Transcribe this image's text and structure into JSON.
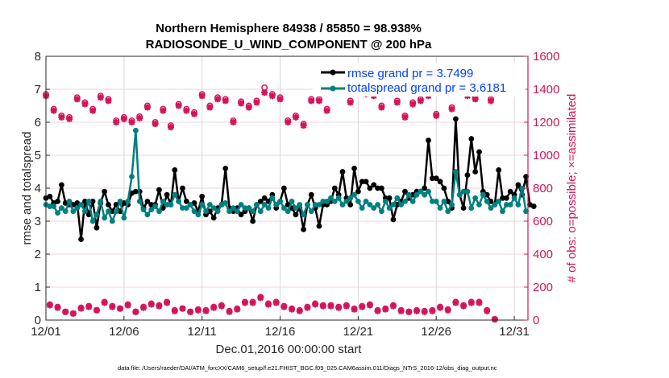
{
  "chart_data": {
    "type": "line",
    "title": "Northern Hemisphere 84938 / 85850 = 98.938%",
    "subtitle": "RADIOSONDE_U_WIND_COMPONENT @ 200 hPa",
    "xlabel": "Dec.01,2016 00:00:00 start",
    "ylabel": "rmse and totalspread",
    "ylabel_right": "# of obs: o=possible; ×=assimilated",
    "footer": "data file: /Users/raeder/DAI/ATM_forcXX/CAM6_setup/f.e21.FHIST_BGC.f09_025.CAM6assim.011/Diags_NTrS_2016-12/obs_diag_output.nc",
    "x_step_days": 0.25,
    "xlim": [
      0,
      30.875
    ],
    "ylim": [
      0,
      8
    ],
    "ylim_right": [
      0,
      1600
    ],
    "x_ticks": [
      {
        "day": 0,
        "label": "12/01"
      },
      {
        "day": 5,
        "label": "12/06"
      },
      {
        "day": 10,
        "label": "12/11"
      },
      {
        "day": 15,
        "label": "12/16"
      },
      {
        "day": 20,
        "label": "12/21"
      },
      {
        "day": 25,
        "label": "12/26"
      },
      {
        "day": 30,
        "label": "12/31"
      }
    ],
    "y_ticks": [
      "0",
      "1",
      "2",
      "3",
      "4",
      "5",
      "6",
      "7",
      "8"
    ],
    "y_ticks_right": [
      "0",
      "200",
      "400",
      "600",
      "800",
      "1000",
      "1200",
      "1400",
      "1600"
    ],
    "grid": true,
    "legend_position": "top-right",
    "colors": {
      "rmse": "#000000",
      "spread": "#008080",
      "obs": "#d4145a",
      "legend_text": "#0040ff",
      "grid": "#f2d3de",
      "vgrid": "#d8d8d8"
    },
    "series": [
      {
        "name": "rmse grand pr = 3.7499",
        "key": "rmse",
        "values": [
          3.7,
          3.75,
          3.55,
          3.6,
          4.1,
          3.55,
          3.5,
          3.5,
          3.55,
          2.45,
          3.6,
          3.2,
          3.6,
          2.8,
          3.55,
          3.9,
          3.5,
          3.3,
          3.5,
          3.3,
          3.55,
          3.5,
          3.85,
          3.9,
          3.9,
          3.4,
          3.6,
          3.5,
          3.5,
          3.95,
          3.4,
          3.8,
          3.5,
          4.55,
          3.6,
          4.0,
          3.6,
          3.5,
          3.55,
          3.3,
          3.75,
          3.2,
          3.3,
          3.1,
          3.4,
          3.5,
          4.6,
          3.4,
          3.3,
          3.4,
          3.2,
          3.3,
          3.4,
          3.0,
          3.5,
          3.6,
          3.7,
          3.6,
          3.8,
          3.4,
          3.6,
          4.0,
          3.5,
          3.4,
          3.2,
          3.4,
          2.75,
          3.5,
          3.8,
          3.4,
          2.85,
          3.5,
          3.5,
          3.6,
          4.0,
          3.8,
          4.5,
          3.7,
          3.5,
          4.6,
          3.9,
          4.2,
          4.2,
          4.0,
          4.1,
          4.0,
          4.0,
          3.7,
          3.7,
          3.05,
          3.5,
          3.6,
          3.9,
          3.7,
          3.8,
          3.9,
          3.9,
          4.0,
          5.45,
          4.3,
          4.3,
          4.2,
          4.0,
          3.6,
          3.4,
          6.1,
          3.8,
          3.4,
          4.4,
          5.5,
          4.5,
          5.1,
          3.9,
          3.8,
          3.6,
          3.5,
          4.55,
          3.7,
          3.7,
          3.9,
          3.8,
          4.1,
          3.8,
          4.35,
          3.5,
          3.45
        ]
      },
      {
        "name": "totalspread grand pr = 3.6181",
        "key": "spread",
        "values": [
          3.5,
          3.45,
          3.45,
          3.25,
          3.4,
          3.3,
          3.6,
          3.3,
          3.4,
          3.5,
          3.3,
          3.6,
          3.0,
          3.2,
          3.6,
          3.1,
          3.3,
          3.0,
          3.3,
          3.6,
          3.1,
          3.6,
          4.35,
          5.75,
          3.6,
          3.35,
          3.2,
          3.35,
          3.45,
          3.3,
          3.6,
          3.5,
          3.5,
          3.8,
          3.6,
          3.4,
          3.4,
          3.5,
          3.3,
          3.2,
          3.5,
          3.3,
          3.5,
          3.4,
          3.3,
          3.5,
          3.55,
          3.3,
          3.4,
          3.3,
          3.5,
          3.4,
          3.4,
          3.3,
          3.5,
          3.3,
          3.5,
          3.4,
          3.7,
          3.5,
          3.6,
          3.4,
          3.3,
          3.6,
          3.4,
          3.5,
          3.2,
          3.5,
          3.3,
          3.5,
          3.5,
          3.6,
          3.6,
          3.7,
          3.6,
          3.7,
          3.5,
          3.6,
          3.7,
          3.8,
          3.6,
          3.4,
          3.6,
          3.5,
          3.4,
          3.5,
          3.3,
          3.6,
          3.4,
          3.5,
          3.7,
          3.5,
          3.6,
          3.8,
          3.6,
          3.8,
          3.9,
          3.8,
          3.9,
          3.6,
          3.6,
          3.4,
          3.6,
          3.3,
          3.5,
          4.5,
          3.8,
          3.9,
          3.9,
          3.4,
          3.7,
          3.5,
          3.8,
          3.6,
          3.4,
          3.5,
          3.6,
          3.3,
          3.5,
          3.5,
          3.7,
          3.5,
          4.0,
          3.3
        ]
      },
      {
        "name": "obs possible",
        "key": "possible",
        "values": [
          1370,
          95,
          1280,
          80,
          1240,
          50,
          1230,
          40,
          1350,
          75,
          1320,
          85,
          1280,
          60,
          1360,
          110,
          1340,
          85,
          1210,
          70,
          1230,
          95,
          1210,
          50,
          1235,
          80,
          1300,
          100,
          1200,
          90,
          1280,
          110,
          1180,
          60,
          1310,
          70,
          1280,
          50,
          1260,
          65,
          1370,
          60,
          1300,
          80,
          1350,
          90,
          1340,
          55,
          1210,
          70,
          1325,
          110,
          1300,
          110,
          1330,
          140,
          1410,
          100,
          1370,
          110,
          1350,
          85,
          1210,
          70,
          1240,
          60,
          1190,
          80,
          1340,
          100,
          1340,
          90,
          1280,
          90,
          1390,
          80,
          1400,
          90,
          1330,
          70,
          1400,
          85,
          1380,
          95,
          1370,
          60,
          1300,
          70,
          1390,
          90,
          1330,
          60,
          1240,
          50,
          1320,
          60,
          1340,
          55,
          1370,
          60,
          1250,
          80,
          1400,
          65,
          1290,
          110,
          1400,
          90,
          1370,
          110,
          1350,
          110,
          1390,
          60,
          1340,
          5
        ]
      },
      {
        "name": "obs assimilated",
        "key": "assimilated",
        "values": [
          1360,
          90,
          1270,
          75,
          1230,
          50,
          1220,
          40,
          1340,
          70,
          1310,
          80,
          1270,
          60,
          1350,
          105,
          1330,
          80,
          1200,
          70,
          1220,
          90,
          1200,
          50,
          1225,
          75,
          1290,
          95,
          1190,
          85,
          1270,
          105,
          1170,
          55,
          1300,
          70,
          1270,
          50,
          1250,
          60,
          1360,
          55,
          1290,
          75,
          1340,
          85,
          1330,
          50,
          1200,
          65,
          1315,
          105,
          1290,
          105,
          1320,
          135,
          1380,
          95,
          1360,
          105,
          1340,
          80,
          1200,
          65,
          1230,
          55,
          1180,
          75,
          1330,
          95,
          1330,
          85,
          1270,
          85,
          1380,
          75,
          1390,
          85,
          1320,
          65,
          1390,
          80,
          1370,
          90,
          1360,
          55,
          1290,
          65,
          1380,
          85,
          1320,
          55,
          1230,
          50,
          1310,
          55,
          1330,
          50,
          1360,
          55,
          1240,
          75,
          1390,
          60,
          1280,
          105,
          1390,
          85,
          1360,
          105,
          1340,
          105,
          1380,
          55,
          1330,
          5
        ]
      }
    ]
  }
}
